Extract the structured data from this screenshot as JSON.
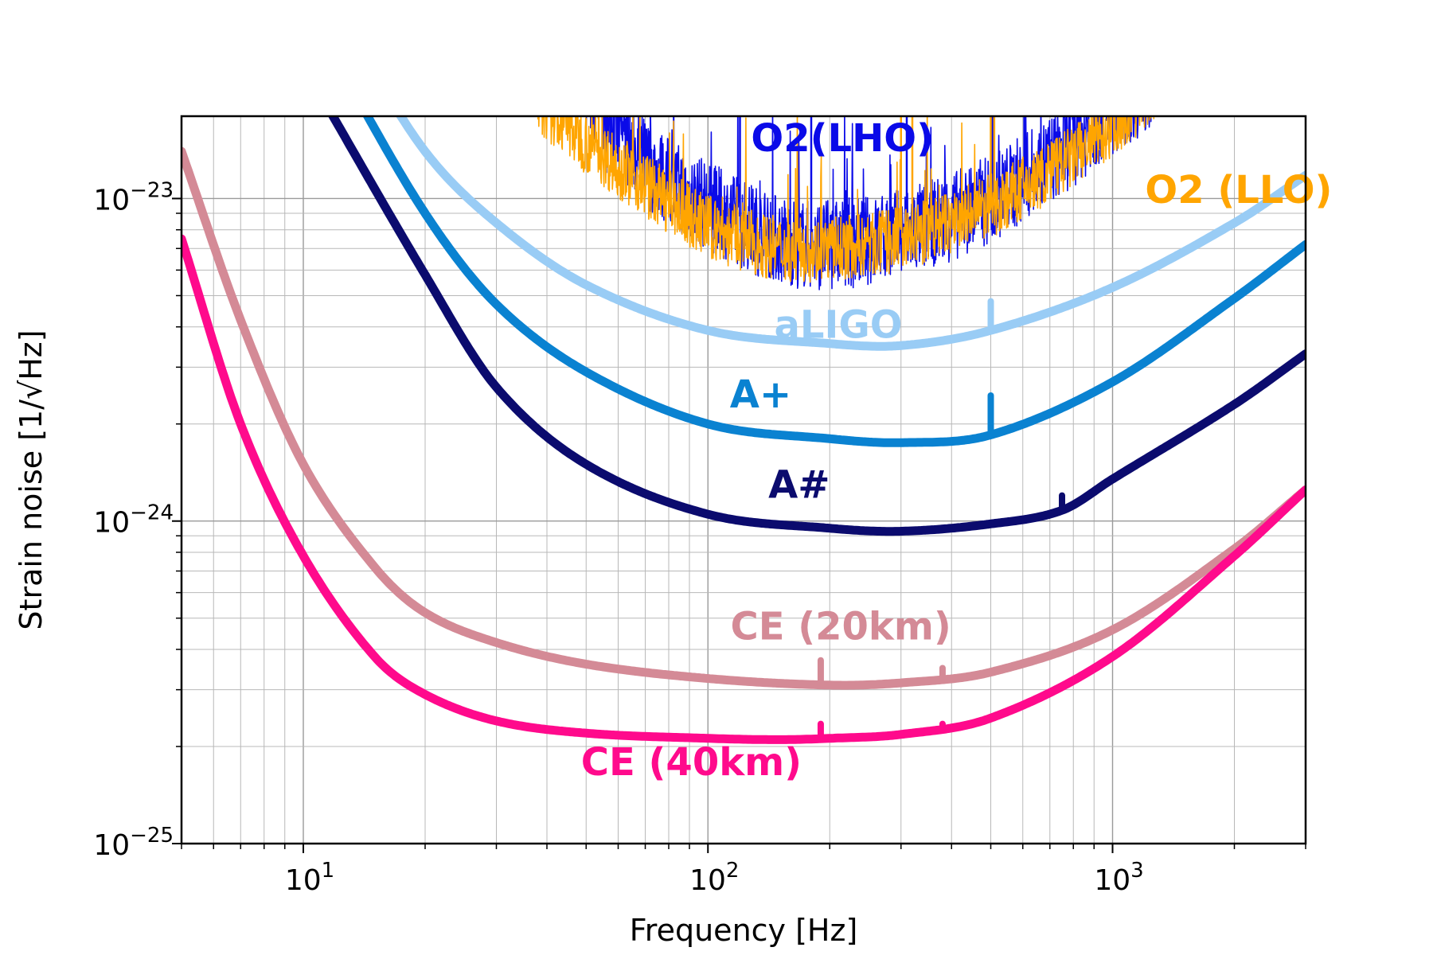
{
  "chart_data": {
    "type": "line",
    "xscale": "log",
    "yscale": "log",
    "xlabel": "Frequency [Hz]",
    "ylabel": "Strain noise [1/√Hz]",
    "xlim": [
      5,
      3000
    ],
    "ylim": [
      1e-25,
      1.8e-23
    ],
    "grid": true,
    "x_ticks": [
      {
        "value": 10,
        "base": "10",
        "exp": "1"
      },
      {
        "value": 100,
        "base": "10",
        "exp": "2"
      },
      {
        "value": 1000,
        "base": "10",
        "exp": "3"
      }
    ],
    "y_ticks": [
      {
        "value": 1e-25,
        "base": "10",
        "exp": "−25"
      },
      {
        "value": 1e-24,
        "base": "10",
        "exp": "−24"
      },
      {
        "value": 1e-23,
        "base": "10",
        "exp": "−23"
      }
    ],
    "series": [
      {
        "name": "O2(LHO)",
        "color": "#0a0ae8",
        "kind": "noisy",
        "width": 1.6,
        "x": [
          50,
          70,
          100,
          150,
          200,
          300,
          500,
          800,
          1000,
          1300
        ],
        "y": [
          2.2e-23,
          1.3e-23,
          9.5e-24,
          7.5e-24,
          7.2e-24,
          7.8e-24,
          1e-23,
          1.5e-23,
          1.9e-23,
          2.3e-23
        ],
        "lines": [
          [
            56,
            2.4e-23,
            1.2e-23
          ],
          [
            60,
            2.4e-23,
            1.3e-23
          ],
          [
            120,
            2.4e-23,
            8.8e-24
          ],
          [
            180,
            2.4e-23,
            7.8e-24
          ],
          [
            300,
            2.4e-23,
            8.2e-24
          ],
          [
            310,
            2.4e-23,
            8.2e-24
          ],
          [
            505,
            2.4e-23,
            1.1e-23
          ],
          [
            605,
            2.4e-23,
            1.2e-23
          ]
        ]
      },
      {
        "name": "O2 (LLO)",
        "color": "#ffa500",
        "kind": "noisy",
        "width": 1.6,
        "x": [
          38,
          50,
          70,
          100,
          150,
          200,
          300,
          500,
          800,
          1000,
          1300
        ],
        "y": [
          2e-23,
          1.5e-23,
          1.1e-23,
          8.2e-24,
          7e-24,
          7e-24,
          7.5e-24,
          9.5e-24,
          1.35e-23,
          1.7e-23,
          2.2e-23
        ],
        "band": true,
        "lines": [
          [
            300,
            2.4e-23,
            8e-24
          ],
          [
            320,
            2.4e-23,
            8e-24
          ],
          [
            500,
            2.4e-23,
            1e-23
          ],
          [
            510,
            2.4e-23,
            1e-23
          ]
        ]
      },
      {
        "name": "aLIGO",
        "color": "#99ccf5",
        "kind": "smooth",
        "width": 11,
        "x": [
          13,
          20,
          30,
          50,
          100,
          200,
          300,
          500,
          1000,
          2000,
          3000
        ],
        "y": [
          3.3e-23,
          1.4e-23,
          8.4e-24,
          5.4e-24,
          3.9e-24,
          3.55e-24,
          3.5e-24,
          3.9e-24,
          5.3e-24,
          8.4e-24,
          1.18e-23
        ],
        "spikes": [
          [
            500,
            4.8e-24
          ]
        ]
      },
      {
        "name": "A+",
        "color": "#0a82d1",
        "kind": "smooth",
        "width": 11,
        "x": [
          12,
          20,
          30,
          50,
          100,
          200,
          300,
          500,
          1000,
          2000,
          3000
        ],
        "y": [
          2.7e-23,
          9e-24,
          4.7e-24,
          2.9e-24,
          2e-24,
          1.8e-24,
          1.75e-24,
          1.85e-24,
          2.7e-24,
          4.9e-24,
          7.2e-24
        ],
        "spikes": [
          [
            500,
            2.45e-24
          ]
        ]
      },
      {
        "name": "A#",
        "color": "#0b0b6e",
        "kind": "smooth",
        "width": 11,
        "x": [
          10,
          20,
          30,
          50,
          100,
          200,
          300,
          500,
          750,
          1000,
          2000,
          3000
        ],
        "y": [
          2.6e-23,
          5.8e-24,
          2.6e-24,
          1.5e-24,
          1.05e-24,
          9.5e-25,
          9.3e-25,
          9.8e-25,
          1.08e-24,
          1.35e-24,
          2.3e-24,
          3.3e-24
        ],
        "spikes": [
          [
            750,
            1.2e-24
          ]
        ]
      },
      {
        "name": "CE (20km)",
        "color": "#d48a96",
        "kind": "smooth",
        "width": 11,
        "x": [
          5,
          7,
          10,
          15,
          20,
          30,
          50,
          100,
          200,
          300,
          500,
          1000,
          2000,
          3000
        ],
        "y": [
          1.4e-23,
          4.2e-24,
          1.5e-24,
          7.2e-25,
          5.2e-25,
          4.2e-25,
          3.6e-25,
          3.25e-25,
          3.1e-25,
          3.15e-25,
          3.4e-25,
          4.6e-25,
          8.2e-25,
          1.25e-24
        ],
        "spikes": [
          [
            190,
            3.7e-25
          ],
          [
            380,
            3.5e-25
          ]
        ]
      },
      {
        "name": "CE (40km)",
        "color": "#ff0a8c",
        "kind": "smooth",
        "width": 11,
        "x": [
          5,
          7,
          10,
          15,
          20,
          30,
          50,
          100,
          150,
          200,
          300,
          500,
          1000,
          2000,
          3000
        ],
        "y": [
          7.5e-24,
          2e-24,
          7.8e-25,
          3.8e-25,
          2.9e-25,
          2.4e-25,
          2.2e-25,
          2.12e-25,
          2.1e-25,
          2.12e-25,
          2.18e-25,
          2.45e-25,
          3.8e-25,
          7.8e-25,
          1.25e-24
        ],
        "spikes": [
          [
            190,
            2.35e-25
          ],
          [
            380,
            2.35e-25
          ]
        ]
      }
    ],
    "annotations": [
      {
        "text": "O2(LHO)",
        "color": "#0a0ae8",
        "x": 215,
        "y": 1.4e-23,
        "anchor": "middle"
      },
      {
        "text": "O2 (LLO)",
        "color": "#ffa500",
        "x": 2050,
        "y": 9.7e-24,
        "anchor": "middle"
      },
      {
        "text": "aLIGO",
        "color": "#99ccf5",
        "x": 210,
        "y": 3.7e-24,
        "anchor": "middle"
      },
      {
        "text": "A+",
        "color": "#0a82d1",
        "x": 135,
        "y": 2.25e-24,
        "anchor": "middle"
      },
      {
        "text": "A#",
        "color": "#0b0b6e",
        "x": 168,
        "y": 1.18e-24,
        "anchor": "middle"
      },
      {
        "text": "CE (20km)",
        "color": "#d48a96",
        "x": 213,
        "y": 4.3e-25,
        "anchor": "middle"
      },
      {
        "text": "CE (40km)",
        "color": "#ff0a8c",
        "x": 91,
        "y": 1.63e-25,
        "anchor": "middle"
      }
    ]
  }
}
